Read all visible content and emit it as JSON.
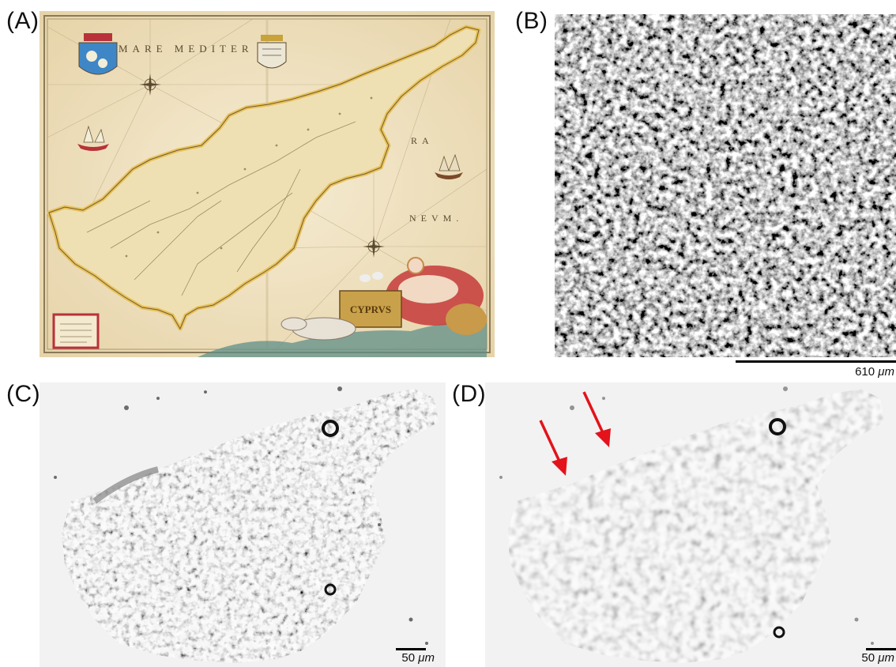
{
  "panels": [
    {
      "label": "(A)",
      "content": "antique hand-coloured map of Cyprus"
    },
    {
      "label": "(B)",
      "content": "grayscale microscopy of a cell layer"
    },
    {
      "label": "(C)",
      "content": "bright-field microscopy, Cyprus-shaped cell aggregate"
    },
    {
      "label": "(D)",
      "content": "blurred bright-field microscopy with two red arrows"
    }
  ],
  "map_text": {
    "sea_name_1": "MARE  MEDITER",
    "sea_name_2": "RA",
    "sea_name_3": "NEVM.",
    "cartouche": "CYPRVS"
  },
  "scalebars": {
    "b": {
      "num": "610",
      "unit": "μm"
    },
    "c": {
      "num": "50",
      "unit": "μm"
    },
    "d": {
      "num": "50",
      "unit": "μm"
    }
  },
  "colors": {
    "arrow": "#e3121b",
    "parchment": "#f1e4c6",
    "land": "#efe0b3",
    "coast": "#e8c25a"
  }
}
